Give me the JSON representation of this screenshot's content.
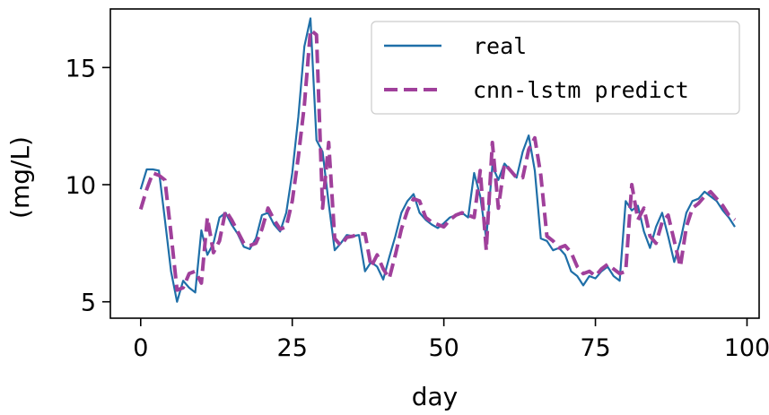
{
  "chart_data": {
    "type": "line",
    "xlabel": "day",
    "ylabel": "(mg/L)",
    "xlim": [
      -5,
      102
    ],
    "ylim": [
      4.3,
      17.5
    ],
    "xticks": [
      0,
      25,
      50,
      75,
      100
    ],
    "yticks": [
      5,
      10,
      15
    ],
    "grid": false,
    "legend_position": "top-right",
    "series": [
      {
        "name": "real",
        "color": "#1f6fa8",
        "style": "solid",
        "points": [
          [
            0,
            9.8
          ],
          [
            1,
            10.65
          ],
          [
            2,
            10.65
          ],
          [
            3,
            10.6
          ],
          [
            4,
            8.5
          ],
          [
            5,
            6.3
          ],
          [
            6,
            5.0
          ],
          [
            7,
            5.9
          ],
          [
            8,
            5.6
          ],
          [
            9,
            5.4
          ],
          [
            10,
            8.05
          ],
          [
            11,
            7.0
          ],
          [
            12,
            7.5
          ],
          [
            13,
            8.6
          ],
          [
            14,
            8.8
          ],
          [
            15,
            8.3
          ],
          [
            16,
            7.9
          ],
          [
            17,
            7.35
          ],
          [
            18,
            7.25
          ],
          [
            19,
            7.7
          ],
          [
            20,
            8.7
          ],
          [
            21,
            8.8
          ],
          [
            22,
            8.3
          ],
          [
            23,
            8.0
          ],
          [
            24,
            8.8
          ],
          [
            25,
            10.5
          ],
          [
            26,
            12.9
          ],
          [
            27,
            15.9
          ],
          [
            28,
            17.1
          ],
          [
            29,
            11.9
          ],
          [
            30,
            11.4
          ],
          [
            31,
            9.2
          ],
          [
            32,
            7.2
          ],
          [
            33,
            7.5
          ],
          [
            34,
            7.85
          ],
          [
            35,
            7.8
          ],
          [
            36,
            7.85
          ],
          [
            37,
            6.3
          ],
          [
            38,
            6.7
          ],
          [
            39,
            6.5
          ],
          [
            40,
            5.95
          ],
          [
            41,
            6.9
          ],
          [
            42,
            7.8
          ],
          [
            43,
            8.8
          ],
          [
            44,
            9.3
          ],
          [
            45,
            9.6
          ],
          [
            46,
            8.8
          ],
          [
            47,
            8.5
          ],
          [
            48,
            8.3
          ],
          [
            49,
            8.15
          ],
          [
            50,
            8.35
          ],
          [
            51,
            8.6
          ],
          [
            52,
            8.7
          ],
          [
            53,
            8.8
          ],
          [
            54,
            8.6
          ],
          [
            55,
            10.5
          ],
          [
            56,
            9.5
          ],
          [
            57,
            7.7
          ],
          [
            58,
            10.8
          ],
          [
            59,
            10.2
          ],
          [
            60,
            10.9
          ],
          [
            61,
            10.6
          ],
          [
            62,
            10.3
          ],
          [
            63,
            11.4
          ],
          [
            64,
            12.1
          ],
          [
            65,
            10.6
          ],
          [
            66,
            7.7
          ],
          [
            67,
            7.6
          ],
          [
            68,
            7.2
          ],
          [
            69,
            7.3
          ],
          [
            70,
            7.0
          ],
          [
            71,
            6.3
          ],
          [
            72,
            6.1
          ],
          [
            73,
            5.7
          ],
          [
            74,
            6.1
          ],
          [
            75,
            6.0
          ],
          [
            76,
            6.3
          ],
          [
            77,
            6.5
          ],
          [
            78,
            6.1
          ],
          [
            79,
            5.9
          ],
          [
            80,
            9.3
          ],
          [
            81,
            8.9
          ],
          [
            82,
            9.1
          ],
          [
            83,
            8.0
          ],
          [
            84,
            7.3
          ],
          [
            85,
            8.2
          ],
          [
            86,
            8.8
          ],
          [
            87,
            7.8
          ],
          [
            88,
            6.7
          ],
          [
            89,
            7.6
          ],
          [
            90,
            8.8
          ],
          [
            91,
            9.3
          ],
          [
            92,
            9.4
          ],
          [
            93,
            9.7
          ],
          [
            94,
            9.5
          ],
          [
            95,
            9.3
          ],
          [
            96,
            8.9
          ],
          [
            97,
            8.6
          ],
          [
            98,
            8.2
          ]
        ]
      },
      {
        "name": "cnn-lstm predict",
        "color": "#a0409b",
        "style": "dashed",
        "points": [
          [
            0,
            8.95
          ],
          [
            1,
            9.8
          ],
          [
            2,
            10.5
          ],
          [
            3,
            10.4
          ],
          [
            4,
            10.2
          ],
          [
            5,
            7.9
          ],
          [
            6,
            5.5
          ],
          [
            7,
            5.6
          ],
          [
            8,
            6.2
          ],
          [
            9,
            6.3
          ],
          [
            10,
            5.8
          ],
          [
            11,
            8.6
          ],
          [
            12,
            7.1
          ],
          [
            13,
            7.6
          ],
          [
            14,
            8.9
          ],
          [
            15,
            8.5
          ],
          [
            16,
            8.0
          ],
          [
            17,
            7.5
          ],
          [
            18,
            7.4
          ],
          [
            19,
            7.5
          ],
          [
            20,
            8.1
          ],
          [
            21,
            9.0
          ],
          [
            22,
            8.5
          ],
          [
            23,
            8.1
          ],
          [
            24,
            8.2
          ],
          [
            25,
            9.3
          ],
          [
            26,
            11.2
          ],
          [
            27,
            13.4
          ],
          [
            28,
            16.6
          ],
          [
            29,
            16.4
          ],
          [
            30,
            9.0
          ],
          [
            31,
            11.8
          ],
          [
            32,
            7.7
          ],
          [
            33,
            7.4
          ],
          [
            34,
            7.75
          ],
          [
            35,
            7.8
          ],
          [
            36,
            7.9
          ],
          [
            37,
            7.9
          ],
          [
            38,
            6.5
          ],
          [
            39,
            7.0
          ],
          [
            40,
            6.4
          ],
          [
            41,
            6.0
          ],
          [
            42,
            7.0
          ],
          [
            43,
            8.1
          ],
          [
            44,
            8.9
          ],
          [
            45,
            9.4
          ],
          [
            46,
            9.3
          ],
          [
            47,
            8.6
          ],
          [
            48,
            8.4
          ],
          [
            49,
            8.3
          ],
          [
            50,
            8.2
          ],
          [
            51,
            8.5
          ],
          [
            52,
            8.7
          ],
          [
            53,
            8.8
          ],
          [
            54,
            8.7
          ],
          [
            55,
            8.6
          ],
          [
            56,
            10.6
          ],
          [
            57,
            7.2
          ],
          [
            58,
            11.8
          ],
          [
            59,
            9.0
          ],
          [
            60,
            10.9
          ],
          [
            61,
            10.6
          ],
          [
            62,
            10.3
          ],
          [
            63,
            10.3
          ],
          [
            64,
            11.5
          ],
          [
            65,
            12.0
          ],
          [
            66,
            10.4
          ],
          [
            67,
            7.8
          ],
          [
            68,
            7.6
          ],
          [
            69,
            7.3
          ],
          [
            70,
            7.4
          ],
          [
            71,
            7.1
          ],
          [
            72,
            6.5
          ],
          [
            73,
            6.2
          ],
          [
            74,
            6.3
          ],
          [
            75,
            6.1
          ],
          [
            76,
            6.4
          ],
          [
            77,
            6.6
          ],
          [
            78,
            6.4
          ],
          [
            79,
            6.2
          ],
          [
            80,
            6.3
          ],
          [
            81,
            10.0
          ],
          [
            82,
            8.5
          ],
          [
            83,
            9.0
          ],
          [
            84,
            7.8
          ],
          [
            85,
            7.5
          ],
          [
            86,
            8.4
          ],
          [
            87,
            8.7
          ],
          [
            88,
            7.6
          ],
          [
            89,
            6.5
          ],
          [
            90,
            8.2
          ],
          [
            91,
            9.0
          ],
          [
            92,
            9.2
          ],
          [
            93,
            9.5
          ],
          [
            94,
            9.7
          ],
          [
            95,
            9.4
          ],
          [
            96,
            9.1
          ],
          [
            97,
            8.7
          ],
          [
            98,
            8.5
          ]
        ]
      }
    ]
  }
}
